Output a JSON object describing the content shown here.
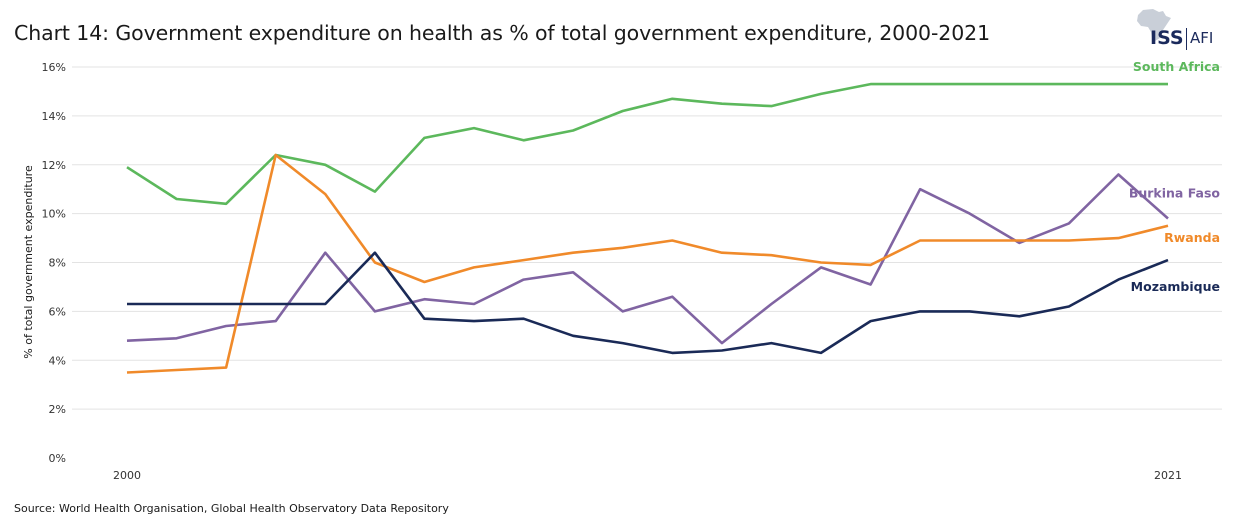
{
  "chart_data": {
    "type": "line",
    "title": "Chart 14: Government expenditure on health as % of total government expenditure, 2000-2021",
    "ylabel": "% of total government expenditure",
    "xlabel": "",
    "x": [
      2000,
      2001,
      2002,
      2003,
      2004,
      2005,
      2006,
      2007,
      2008,
      2009,
      2010,
      2011,
      2012,
      2013,
      2014,
      2015,
      2016,
      2017,
      2018,
      2019,
      2020,
      2021
    ],
    "x_tick_labels": [
      "2000",
      "2021"
    ],
    "ylim": [
      0,
      16
    ],
    "y_ticks": [
      0,
      2,
      4,
      6,
      8,
      10,
      12,
      14,
      16
    ],
    "y_tick_labels": [
      "0%",
      "2%",
      "4%",
      "6%",
      "8%",
      "10%",
      "12%",
      "14%",
      "16%"
    ],
    "grid": true,
    "series": [
      {
        "name": "South Africa",
        "color": "#5cb85c",
        "values": [
          11.9,
          10.6,
          10.4,
          12.4,
          12.0,
          10.9,
          13.1,
          13.5,
          13.0,
          13.4,
          14.2,
          14.7,
          14.5,
          14.4,
          14.9,
          15.3,
          15.3,
          15.3,
          15.3,
          15.3,
          15.3,
          15.3
        ]
      },
      {
        "name": "Burkina Faso",
        "color": "#8064a2",
        "values": [
          4.8,
          4.9,
          5.4,
          5.6,
          8.4,
          6.0,
          6.5,
          6.3,
          7.3,
          7.6,
          6.0,
          6.6,
          4.7,
          6.3,
          7.8,
          7.1,
          11.0,
          10.0,
          8.8,
          9.6,
          11.6,
          9.8
        ]
      },
      {
        "name": "Rwanda",
        "color": "#f08a2a",
        "values": [
          3.5,
          3.6,
          3.7,
          12.4,
          10.8,
          8.0,
          7.2,
          7.8,
          8.1,
          8.4,
          8.6,
          8.9,
          8.4,
          8.3,
          8.0,
          7.9,
          8.9,
          8.9,
          8.9,
          8.9,
          9.0,
          9.5
        ]
      },
      {
        "name": "Mozambique",
        "color": "#1a2a57",
        "values": [
          6.3,
          6.3,
          6.3,
          6.3,
          6.3,
          8.4,
          5.7,
          5.6,
          5.7,
          5.0,
          4.7,
          4.3,
          4.4,
          4.7,
          4.3,
          5.6,
          6.0,
          6.0,
          5.8,
          6.2,
          7.3,
          8.1
        ]
      }
    ]
  },
  "source": "Source: World Health Organisation, Global Health Observatory Data Repository",
  "logo": {
    "iss": "ISS",
    "afi": "AFI"
  }
}
